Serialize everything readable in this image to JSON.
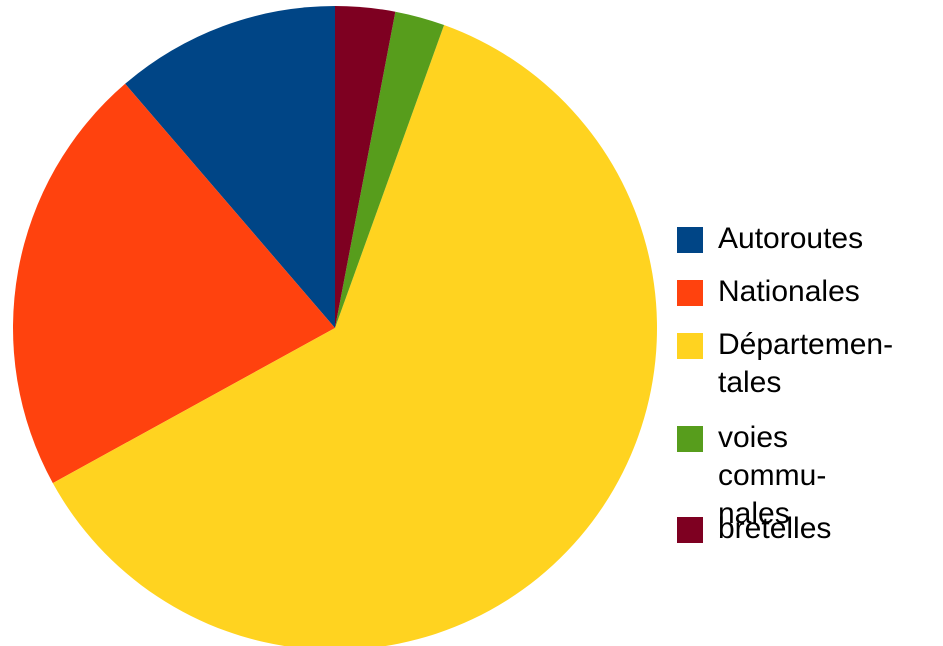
{
  "chart_data": {
    "type": "pie",
    "title": "",
    "legend_position": "right",
    "categories": [
      "Autoroutes",
      "Nationales",
      "Départemen-tales",
      "voies commu-nales",
      "bretelles"
    ],
    "legend_lines": [
      [
        "Autoroutes"
      ],
      [
        "Nationales"
      ],
      [
        "Départemen-",
        "tales"
      ],
      [
        "voies",
        "commu-",
        "nales"
      ],
      [
        "bretelles"
      ]
    ],
    "values": [
      11.3,
      21.7,
      61.5,
      2.5,
      3.0
    ],
    "colors": [
      "#004586",
      "#ff420e",
      "#ffd320",
      "#579d1c",
      "#7e0021"
    ],
    "start_angle_deg": 0,
    "direction": "counterclockwise"
  }
}
